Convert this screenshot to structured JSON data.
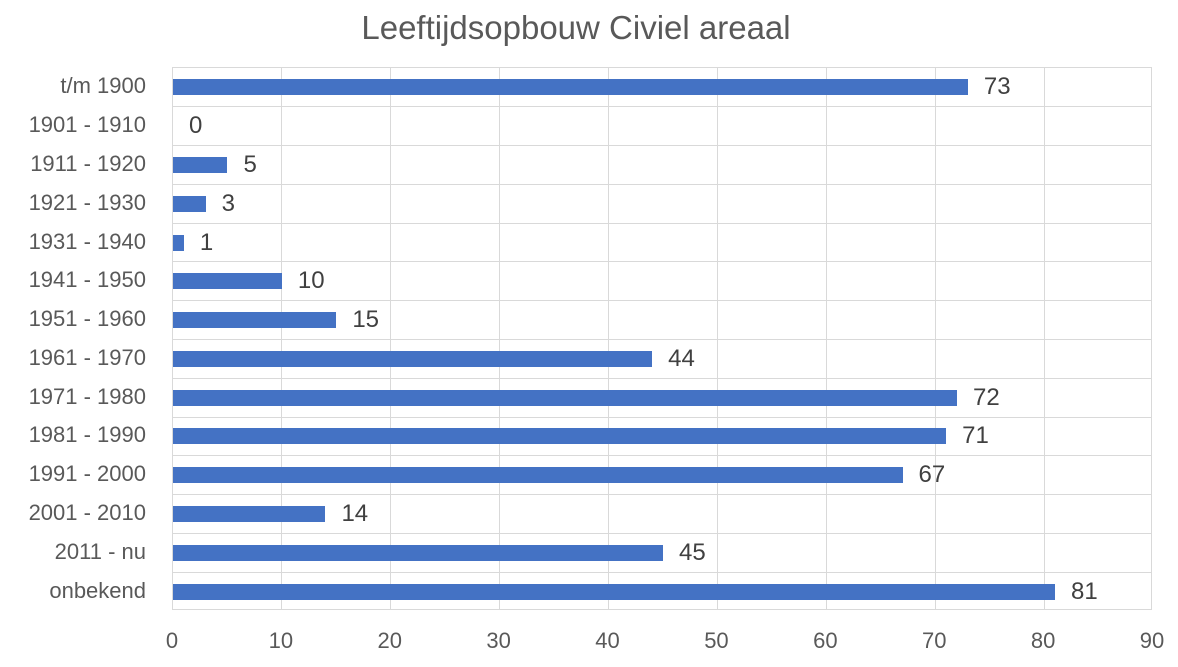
{
  "chart_data": {
    "type": "bar",
    "orientation": "horizontal",
    "title": "Leeftijdsopbouw Civiel areaal",
    "categories": [
      "t/m 1900",
      "1901 - 1910",
      "1911 - 1920",
      "1921 - 1930",
      "1931 - 1940",
      "1941 - 1950",
      "1951 - 1960",
      "1961 - 1970",
      "1971 - 1980",
      "1981 - 1990",
      "1991 - 2000",
      "2001 - 2010",
      "2011 - nu",
      "onbekend"
    ],
    "values": [
      73,
      0,
      5,
      3,
      1,
      10,
      15,
      44,
      72,
      71,
      67,
      14,
      45,
      81
    ],
    "data_labels": [
      73,
      0,
      5,
      3,
      1,
      10,
      15,
      44,
      72,
      71,
      67,
      14,
      45,
      81
    ],
    "xlabel": "",
    "ylabel": "",
    "xlim": [
      0,
      90
    ],
    "x_ticks": [
      0,
      10,
      20,
      30,
      40,
      50,
      60,
      70,
      80,
      90
    ],
    "grid": true,
    "legend": false,
    "colors": {
      "bar": "#4472C4",
      "title_text": "#595959",
      "axis_text": "#595959",
      "data_label_text": "#404040",
      "gridline": "#D9D9D9"
    }
  }
}
